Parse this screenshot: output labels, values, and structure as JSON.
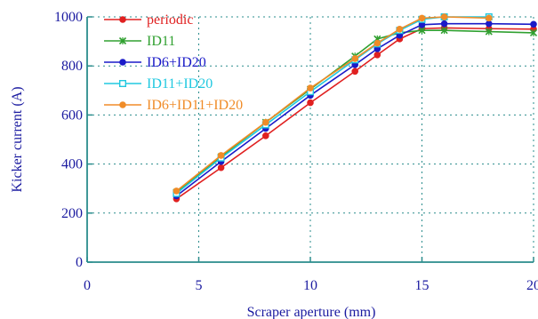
{
  "chart_data": {
    "type": "line",
    "xlabel": "Scraper aperture (mm)",
    "ylabel": "Kicker current (A)",
    "xlim": [
      0,
      20
    ],
    "ylim": [
      0,
      1000
    ],
    "xticks": [
      "0",
      "5",
      "10",
      "15",
      "20"
    ],
    "yticks": [
      "0",
      "200",
      "400",
      "600",
      "800",
      "1000"
    ],
    "grid": true,
    "legend": "top-left",
    "series": [
      {
        "name": "periodic",
        "color": "#e02020",
        "marker": "circle",
        "x": [
          4,
          6,
          8,
          10,
          12,
          13,
          14,
          15,
          16,
          18,
          20
        ],
        "y": [
          258,
          385,
          515,
          650,
          778,
          845,
          910,
          952,
          955,
          952,
          950
        ]
      },
      {
        "name": "ID11",
        "color": "#30a030",
        "marker": "x",
        "x": [
          4,
          6,
          8,
          10,
          12,
          13,
          14,
          15,
          16,
          18,
          20
        ],
        "y": [
          285,
          430,
          570,
          705,
          840,
          910,
          935,
          945,
          945,
          940,
          935
        ]
      },
      {
        "name": "ID6+ID20",
        "color": "#1a1ac8",
        "marker": "circle",
        "x": [
          4,
          6,
          8,
          10,
          12,
          13,
          14,
          15,
          16,
          18,
          20
        ],
        "y": [
          270,
          410,
          545,
          680,
          805,
          870,
          925,
          968,
          972,
          972,
          970
        ]
      },
      {
        "name": "ID11+ID20",
        "color": "#20c8e0",
        "marker": "square",
        "x": [
          4,
          6,
          8,
          10,
          12,
          13,
          14,
          15,
          16,
          18
        ],
        "y": [
          280,
          425,
          560,
          695,
          825,
          890,
          945,
          990,
          1000,
          1000
        ]
      },
      {
        "name": "ID6+ID11+ID20",
        "color": "#f08c28",
        "marker": "circle",
        "x": [
          4,
          6,
          8,
          10,
          12,
          13,
          14,
          15,
          16,
          18
        ],
        "y": [
          290,
          435,
          570,
          710,
          830,
          893,
          950,
          995,
          1000,
          995
        ]
      }
    ]
  }
}
